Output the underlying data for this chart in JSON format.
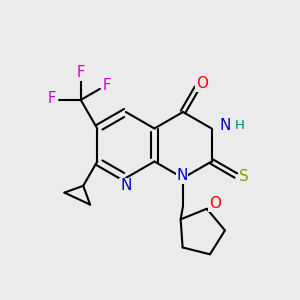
{
  "bg_color": "#ebebeb",
  "atom_colors": {
    "N": "#0000cc",
    "O_carbonyl": "#ff0000",
    "O_ether": "#ff0000",
    "F": "#cc00cc",
    "S": "#999900",
    "H": "#008080",
    "bond": "#000000"
  },
  "bond_lw": 1.5,
  "font_size": 11,
  "font_size_small": 9.5
}
